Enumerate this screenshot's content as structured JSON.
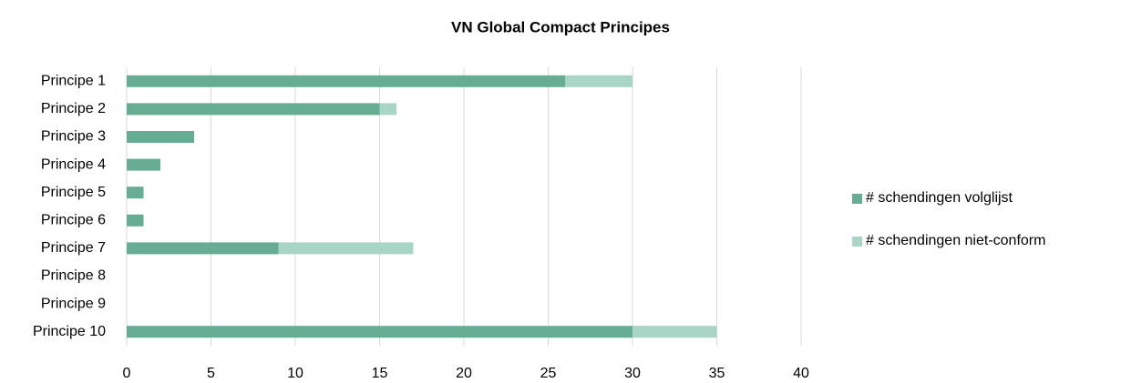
{
  "chart_data": {
    "type": "bar",
    "orientation": "horizontal",
    "stacked": true,
    "title": "VN Global Compact Principes",
    "categories": [
      "Principe 1",
      "Principe 2",
      "Principe 3",
      "Principe 4",
      "Principe 5",
      "Principe 6",
      "Principe 7",
      "Principe 8",
      "Principe 9",
      "Principe 10"
    ],
    "series": [
      {
        "name": "# schendingen volglijst",
        "color": "#66ad94",
        "values": [
          26,
          15,
          4,
          2,
          1,
          1,
          9,
          0,
          0,
          30
        ]
      },
      {
        "name": "# schendingen niet-conform",
        "color": "#a8d5c6",
        "values": [
          4,
          1,
          0,
          0,
          0,
          0,
          8,
          0,
          0,
          5
        ]
      }
    ],
    "xlim": [
      0,
      40
    ],
    "xticks": [
      0,
      5,
      10,
      15,
      20,
      25,
      30,
      35,
      40
    ],
    "grid": true,
    "legend": "right"
  }
}
